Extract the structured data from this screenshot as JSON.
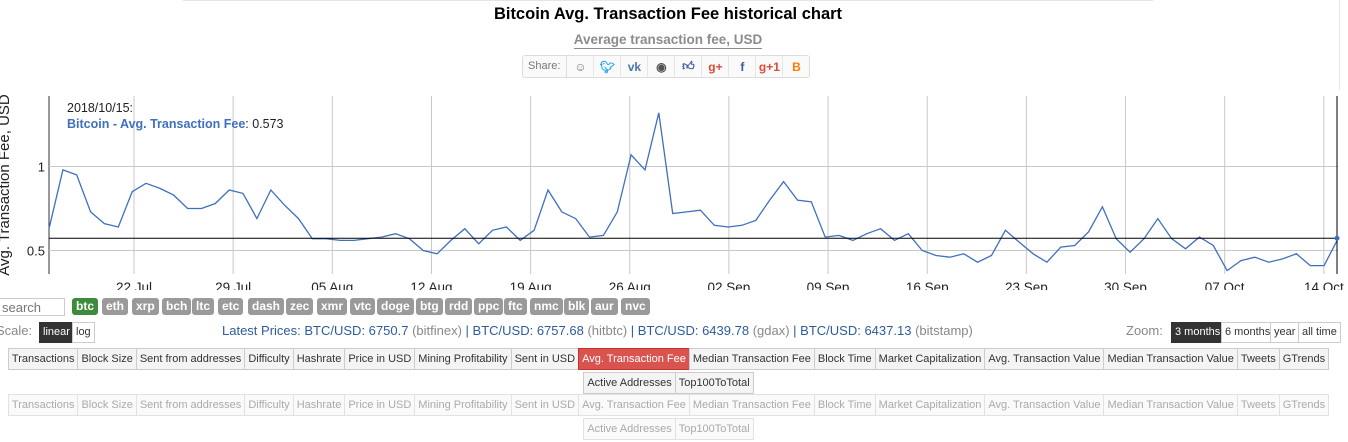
{
  "title": "Bitcoin Avg. Transaction Fee historical chart",
  "subtitle": "Average transaction fee, USD",
  "share": {
    "label": "Share:",
    "icons": [
      {
        "name": "reddit-icon",
        "glyph": "☺",
        "color": "#777"
      },
      {
        "name": "twitter-icon",
        "glyph": "🐦︎",
        "color": "#1da1f2"
      },
      {
        "name": "vk-icon",
        "glyph": "vk",
        "color": "#4a76a8"
      },
      {
        "name": "weibo-icon",
        "glyph": "◉",
        "color": "#555"
      },
      {
        "name": "like-icon",
        "glyph": "👍︎",
        "color": "#3b5998"
      },
      {
        "name": "google-plus-icon",
        "glyph": "g+",
        "color": "#dd4b39"
      },
      {
        "name": "facebook-icon",
        "glyph": "f",
        "color": "#3b5998"
      },
      {
        "name": "google-plus-one-icon",
        "glyph": "g+1",
        "color": "#dd4b39"
      },
      {
        "name": "blogger-icon",
        "glyph": "B",
        "color": "#f57d00"
      }
    ]
  },
  "chart_data": {
    "type": "line",
    "ylabel": "Avg. Transaction Fee, USD",
    "yticks": [
      0.5,
      1
    ],
    "ylim": [
      0.36,
      1.42
    ],
    "xticks": [
      "22 Jul",
      "29 Jul",
      "05 Aug",
      "12 Aug",
      "19 Aug",
      "26 Aug",
      "02 Sep",
      "09 Sep",
      "16 Sep",
      "23 Sep",
      "30 Sep",
      "07 Oct",
      "14 Oct"
    ],
    "x_start": "2018-07-16",
    "x_end": "2018-10-15",
    "grid": true,
    "crosshair_value": 0.573,
    "tooltip": {
      "date": "2018/10/15:",
      "series": "Bitcoin - Avg. Transaction Fee",
      "value": "0.573"
    },
    "series": [
      {
        "name": "Bitcoin - Avg. Transaction Fee",
        "color": "#3f6fbf",
        "values": [
          0.63,
          0.98,
          0.95,
          0.73,
          0.66,
          0.64,
          0.85,
          0.9,
          0.87,
          0.83,
          0.75,
          0.75,
          0.78,
          0.86,
          0.84,
          0.69,
          0.86,
          0.77,
          0.69,
          0.57,
          0.57,
          0.56,
          0.56,
          0.57,
          0.58,
          0.6,
          0.57,
          0.5,
          0.48,
          0.56,
          0.63,
          0.54,
          0.62,
          0.64,
          0.56,
          0.62,
          0.86,
          0.73,
          0.69,
          0.58,
          0.59,
          0.73,
          1.07,
          0.98,
          1.32,
          0.72,
          0.73,
          0.74,
          0.65,
          0.64,
          0.65,
          0.68,
          0.8,
          0.91,
          0.8,
          0.79,
          0.58,
          0.59,
          0.56,
          0.6,
          0.63,
          0.56,
          0.6,
          0.5,
          0.47,
          0.46,
          0.48,
          0.43,
          0.47,
          0.62,
          0.55,
          0.48,
          0.43,
          0.52,
          0.53,
          0.61,
          0.76,
          0.57,
          0.49,
          0.57,
          0.69,
          0.57,
          0.51,
          0.58,
          0.53,
          0.38,
          0.44,
          0.46,
          0.43,
          0.45,
          0.48,
          0.41,
          0.41,
          0.57
        ]
      }
    ]
  },
  "search": {
    "placeholder": "search"
  },
  "coins": [
    "btc",
    "eth",
    "xrp",
    "bch",
    "ltc",
    "etc",
    "dash",
    "zec",
    "xmr",
    "vtc",
    "doge",
    "btg",
    "rdd",
    "ppc",
    "ftc",
    "nmc",
    "blk",
    "aur",
    "nvc"
  ],
  "scale": {
    "label": "Scale:",
    "options": [
      "linear",
      "log"
    ],
    "active": "linear"
  },
  "prices": {
    "label": "Latest Prices:",
    "items": [
      {
        "pair": "BTC/USD: 6750.7",
        "src": "(bitfinex)"
      },
      {
        "pair": "BTC/USD: 6757.68",
        "src": "(hitbtc)"
      },
      {
        "pair": "BTC/USD: 6439.78",
        "src": "(gdax)"
      },
      {
        "pair": "BTC/USD: 6437.13",
        "src": "(bitstamp)"
      }
    ]
  },
  "zoom": {
    "label": "Zoom:",
    "options": [
      "3 months",
      "6 months",
      "year",
      "all time"
    ],
    "active": "3 months"
  },
  "metric_tabs": {
    "row1": [
      "Transactions",
      "Block Size",
      "Sent from addresses",
      "Difficulty",
      "Hashrate",
      "Price in USD",
      "Mining Profitability",
      "Sent in USD",
      "Avg. Transaction Fee",
      "Median Transaction Fee",
      "Block Time",
      "Market Capitalization",
      "Avg. Transaction Value",
      "Median Transaction Value",
      "Tweets",
      "GTrends"
    ],
    "row2": [
      "Active Addresses",
      "Top100ToTotal"
    ],
    "active": "Avg. Transaction Fee"
  }
}
